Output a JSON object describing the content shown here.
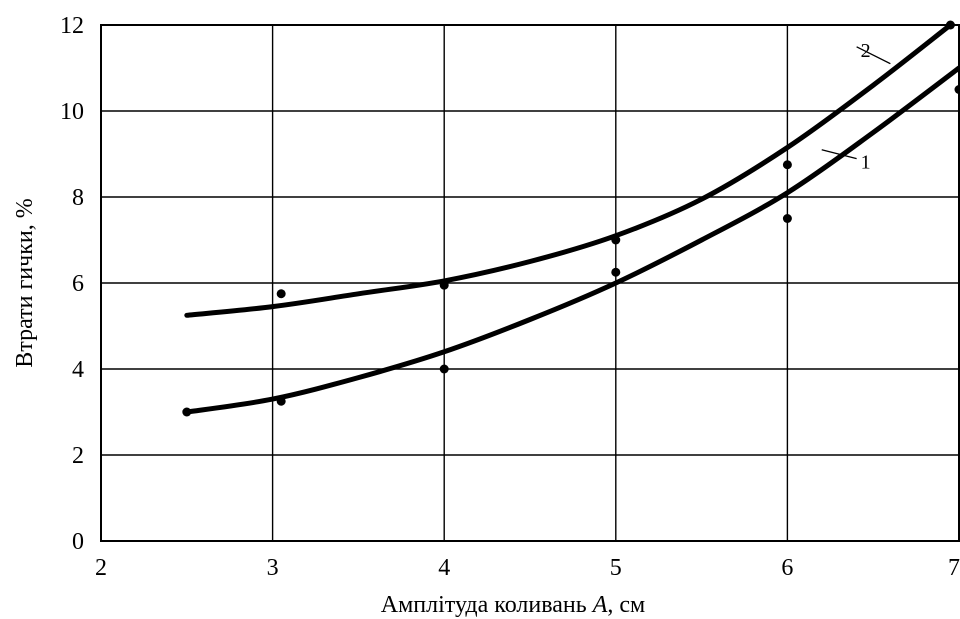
{
  "chart_data": {
    "type": "line",
    "title": "",
    "xlabel_text": "Амплітуда коливань ",
    "xlabel_var": "A",
    "xlabel_unit": ", см",
    "ylabel": "Втрати гички, %",
    "xlim": [
      2,
      7
    ],
    "ylim": [
      0,
      12
    ],
    "xticks": [
      "2",
      "3",
      "4",
      "5",
      "6",
      "7"
    ],
    "yticks": [
      "0",
      "2",
      "4",
      "6",
      "8",
      "10",
      "12"
    ],
    "grid": true,
    "series": [
      {
        "name": "1",
        "curve": {
          "x": [
            2.5,
            3.0,
            3.5,
            4.0,
            4.5,
            5.0,
            5.5,
            6.0,
            6.5,
            7.0
          ],
          "y": [
            3.0,
            3.3,
            3.8,
            4.4,
            5.15,
            6.0,
            7.0,
            8.1,
            9.5,
            11.0
          ]
        },
        "points": {
          "x": [
            2.5,
            3.05,
            4.0,
            5.0,
            6.0
          ],
          "y": [
            3.0,
            3.25,
            4.0,
            6.25,
            7.5
          ]
        }
      },
      {
        "name": "2",
        "curve": {
          "x": [
            2.5,
            3.0,
            3.5,
            4.0,
            4.5,
            5.0,
            5.5,
            6.0,
            6.5,
            6.95
          ],
          "y": [
            5.25,
            5.45,
            5.75,
            6.05,
            6.5,
            7.1,
            7.95,
            9.15,
            10.6,
            12.0
          ]
        },
        "points": {
          "x": [
            3.05,
            4.0,
            5.0,
            6.0,
            6.95
          ],
          "y": [
            5.75,
            5.95,
            7.0,
            8.75,
            12.0
          ]
        }
      },
      {
        "name": "",
        "curve": {
          "x": [],
          "y": []
        },
        "points": {
          "x": [
            7.0
          ],
          "y": [
            10.5
          ]
        }
      }
    ],
    "labels": [
      {
        "text": "1",
        "at_x": 6.45,
        "at_y": 8.8,
        "leader_to_x": 6.2,
        "leader_to_y": 9.1
      },
      {
        "text": "2",
        "at_x": 6.45,
        "at_y": 11.4,
        "leader_to_x": 6.6,
        "leader_to_y": 11.1
      }
    ]
  }
}
